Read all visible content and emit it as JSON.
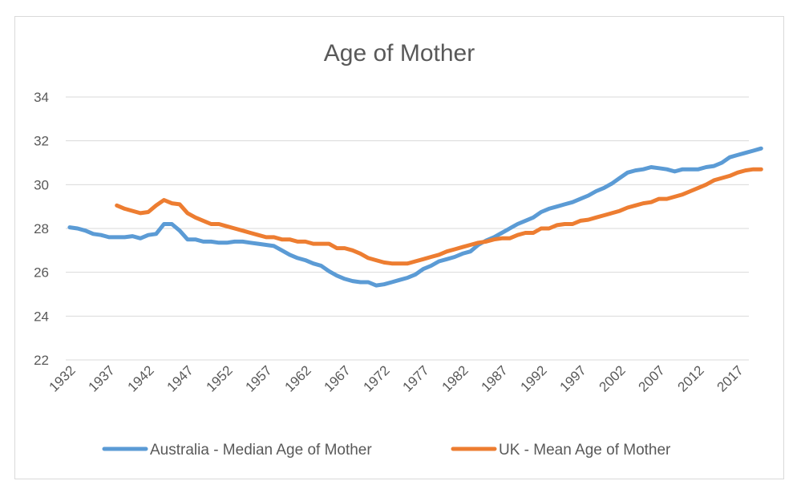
{
  "chart_data": {
    "type": "line",
    "title": "Age of Mother",
    "xlabel": "",
    "ylabel": "",
    "ylim": [
      22,
      34
    ],
    "y_ticks": [
      "22",
      "24",
      "26",
      "28",
      "30",
      "32",
      "34"
    ],
    "x_ticks": [
      "1932",
      "1937",
      "1942",
      "1947",
      "1952",
      "1957",
      "1962",
      "1967",
      "1972",
      "1977",
      "1982",
      "1987",
      "1992",
      "1997",
      "2002",
      "2007",
      "2012",
      "2017"
    ],
    "x_range": [
      1932,
      2020
    ],
    "grid": true,
    "legend_position": "bottom",
    "series": [
      {
        "name": "Australia - Median Age of Mother",
        "color": "#5B9BD5",
        "x": [
          1932,
          1933,
          1934,
          1935,
          1936,
          1937,
          1938,
          1939,
          1940,
          1941,
          1942,
          1943,
          1944,
          1945,
          1946,
          1947,
          1948,
          1949,
          1950,
          1951,
          1952,
          1953,
          1954,
          1955,
          1956,
          1957,
          1958,
          1959,
          1960,
          1961,
          1962,
          1963,
          1964,
          1965,
          1966,
          1967,
          1968,
          1969,
          1970,
          1971,
          1972,
          1973,
          1974,
          1975,
          1976,
          1977,
          1978,
          1979,
          1980,
          1981,
          1982,
          1983,
          1984,
          1985,
          1986,
          1987,
          1988,
          1989,
          1990,
          1991,
          1992,
          1993,
          1994,
          1995,
          1996,
          1997,
          1998,
          1999,
          2000,
          2001,
          2002,
          2003,
          2004,
          2005,
          2006,
          2007,
          2008,
          2009,
          2010,
          2011,
          2012,
          2013,
          2014,
          2015,
          2016,
          2017,
          2018,
          2019,
          2020
        ],
        "values": [
          28.05,
          28.0,
          27.9,
          27.75,
          27.7,
          27.6,
          27.6,
          27.6,
          27.65,
          27.55,
          27.7,
          27.75,
          28.2,
          28.2,
          27.9,
          27.5,
          27.5,
          27.4,
          27.4,
          27.35,
          27.35,
          27.4,
          27.4,
          27.35,
          27.3,
          27.25,
          27.2,
          27.0,
          26.8,
          26.65,
          26.55,
          26.4,
          26.3,
          26.05,
          25.85,
          25.7,
          25.6,
          25.55,
          25.55,
          25.4,
          25.45,
          25.55,
          25.65,
          25.75,
          25.9,
          26.15,
          26.3,
          26.5,
          26.6,
          26.7,
          26.85,
          26.95,
          27.25,
          27.45,
          27.6,
          27.8,
          28.0,
          28.2,
          28.35,
          28.5,
          28.75,
          28.9,
          29.0,
          29.1,
          29.2,
          29.35,
          29.5,
          29.7,
          29.85,
          30.05,
          30.3,
          30.55,
          30.65,
          30.7,
          30.8,
          30.75,
          30.7,
          30.6,
          30.7,
          30.7,
          30.7,
          30.8,
          30.85,
          31.0,
          31.25,
          31.35,
          31.45,
          31.55,
          31.65
        ]
      },
      {
        "name": "UK - Mean Age of Mother",
        "color": "#ED7D31",
        "x": [
          1938,
          1939,
          1940,
          1941,
          1942,
          1943,
          1944,
          1945,
          1946,
          1947,
          1948,
          1949,
          1950,
          1951,
          1952,
          1953,
          1954,
          1955,
          1956,
          1957,
          1958,
          1959,
          1960,
          1961,
          1962,
          1963,
          1964,
          1965,
          1966,
          1967,
          1968,
          1969,
          1970,
          1971,
          1972,
          1973,
          1974,
          1975,
          1976,
          1977,
          1978,
          1979,
          1980,
          1981,
          1982,
          1983,
          1984,
          1985,
          1986,
          1987,
          1988,
          1989,
          1990,
          1991,
          1992,
          1993,
          1994,
          1995,
          1996,
          1997,
          1998,
          1999,
          2000,
          2001,
          2002,
          2003,
          2004,
          2005,
          2006,
          2007,
          2008,
          2009,
          2010,
          2011,
          2012,
          2013,
          2014,
          2015,
          2016,
          2017,
          2018,
          2019,
          2020
        ],
        "values": [
          29.05,
          28.9,
          28.8,
          28.7,
          28.75,
          29.05,
          29.3,
          29.15,
          29.1,
          28.7,
          28.5,
          28.35,
          28.2,
          28.2,
          28.1,
          28.0,
          27.9,
          27.8,
          27.7,
          27.6,
          27.6,
          27.5,
          27.5,
          27.4,
          27.4,
          27.3,
          27.3,
          27.3,
          27.1,
          27.1,
          27.0,
          26.85,
          26.65,
          26.55,
          26.45,
          26.4,
          26.4,
          26.4,
          26.5,
          26.6,
          26.7,
          26.8,
          26.95,
          27.05,
          27.15,
          27.25,
          27.35,
          27.4,
          27.5,
          27.55,
          27.55,
          27.7,
          27.8,
          27.8,
          28.0,
          28.0,
          28.15,
          28.2,
          28.2,
          28.35,
          28.4,
          28.5,
          28.6,
          28.7,
          28.8,
          28.95,
          29.05,
          29.15,
          29.2,
          29.35,
          29.35,
          29.45,
          29.55,
          29.7,
          29.85,
          30.0,
          30.2,
          30.3,
          30.4,
          30.55,
          30.65,
          30.7,
          30.7
        ]
      }
    ]
  }
}
